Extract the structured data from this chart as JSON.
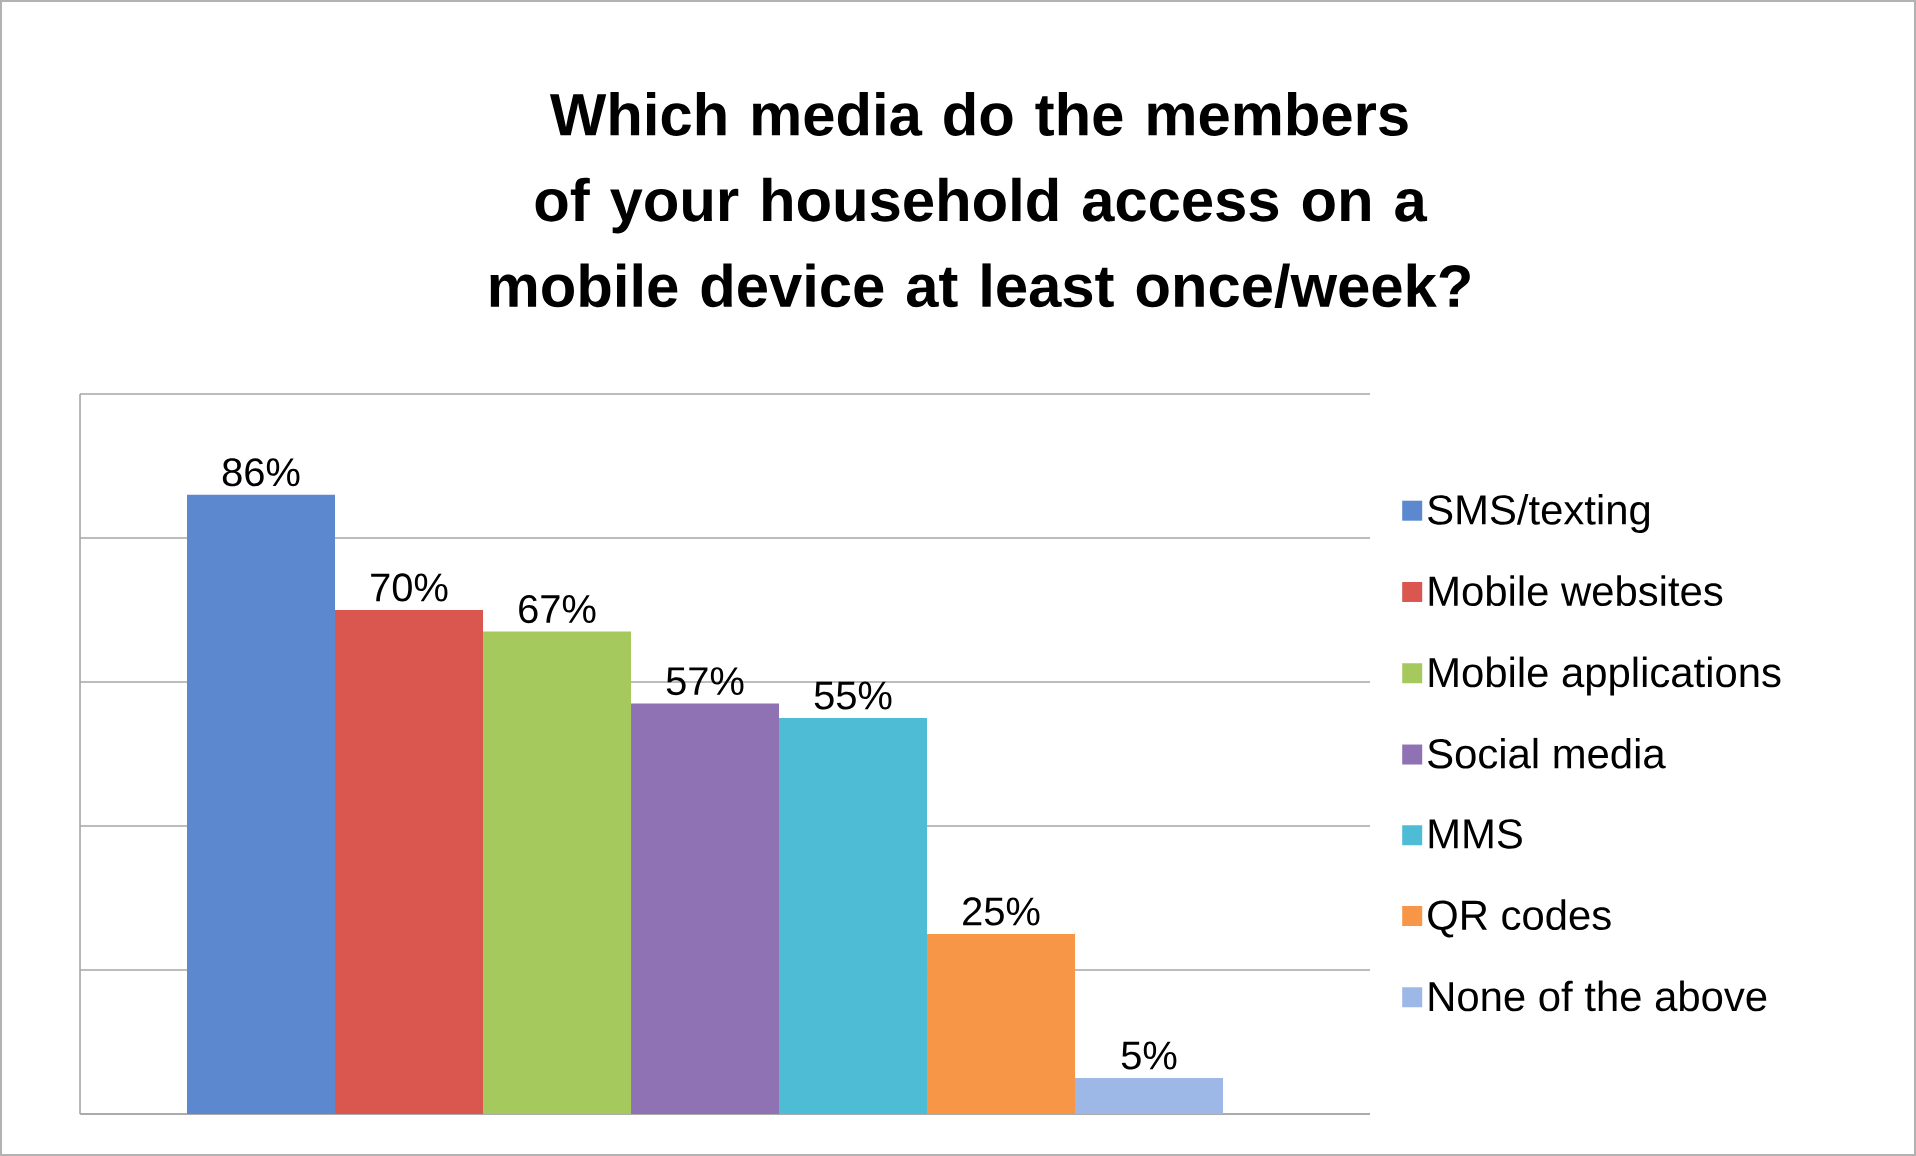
{
  "chart_data": {
    "type": "bar",
    "title": "Which media do the members of your household access on a mobile device at least once/week?",
    "categories": [
      null
    ],
    "series": [
      {
        "name": "SMS/texting",
        "color": "#5b88cf",
        "values": [
          86
        ],
        "value_labels": [
          "86%"
        ]
      },
      {
        "name": "Mobile websites",
        "color": "#d9574f",
        "values": [
          70
        ],
        "value_labels": [
          "70%"
        ]
      },
      {
        "name": "Mobile applications",
        "color": "#a6c95e",
        "values": [
          67
        ],
        "value_labels": [
          "67%"
        ]
      },
      {
        "name": "Social media",
        "color": "#8f72b3",
        "values": [
          57
        ],
        "value_labels": [
          "57%"
        ]
      },
      {
        "name": "MMS",
        "color": "#4fbcd6",
        "values": [
          55
        ],
        "value_labels": [
          "55%"
        ]
      },
      {
        "name": "QR codes",
        "color": "#f79646",
        "values": [
          25
        ],
        "value_labels": [
          "25%"
        ]
      },
      {
        "name": "None of the above",
        "color": "#9db8e6",
        "values": [
          5
        ],
        "value_labels": [
          "5%"
        ]
      }
    ],
    "ylim": [
      0,
      100
    ],
    "yticks": [
      {
        "value": 0,
        "label": null
      },
      {
        "value": 20,
        "label": null
      },
      {
        "value": 40,
        "label": null
      },
      {
        "value": 60,
        "label": null
      },
      {
        "value": 80,
        "label": null
      },
      {
        "value": 100,
        "label": null
      }
    ],
    "grid": "y",
    "legend": "right"
  }
}
